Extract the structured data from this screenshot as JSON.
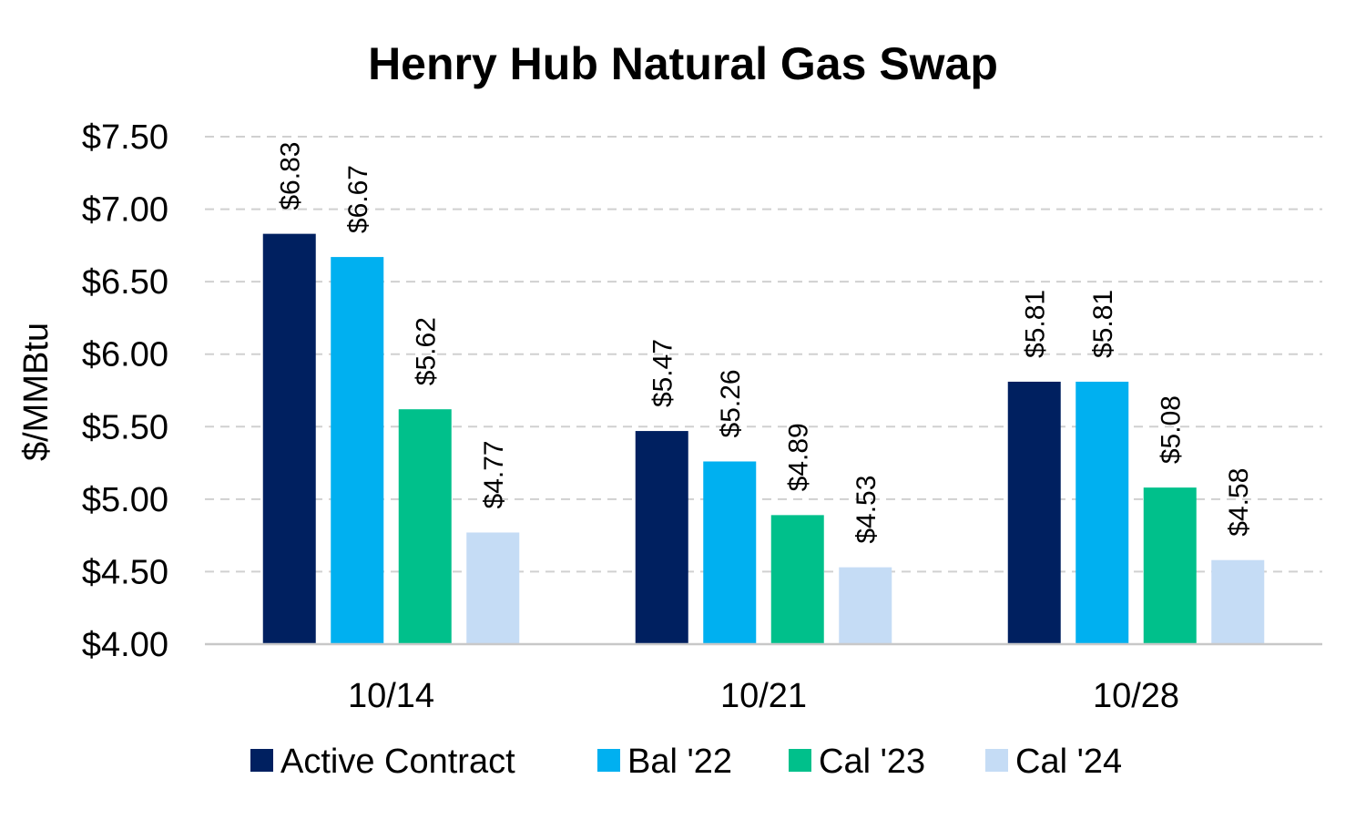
{
  "chart_data": {
    "type": "bar",
    "title": "Henry Hub Natural Gas Swap",
    "xlabel": "",
    "ylabel": "$/MMBtu",
    "ylim": [
      4.0,
      7.5
    ],
    "yticks": [
      4.0,
      4.5,
      5.0,
      5.5,
      6.0,
      6.5,
      7.0,
      7.5
    ],
    "ytick_labels": [
      "$4.00",
      "$4.50",
      "$5.00",
      "$5.50",
      "$6.00",
      "$6.50",
      "$7.00",
      "$7.50"
    ],
    "categories": [
      "10/14",
      "10/21",
      "10/28"
    ],
    "series": [
      {
        "name": "Active Contract",
        "color": "#002060",
        "values": [
          6.83,
          5.47,
          5.81
        ],
        "labels": [
          "$6.83",
          "$5.47",
          "$5.81"
        ]
      },
      {
        "name": "Bal '22",
        "color": "#00B0F0",
        "values": [
          6.67,
          5.26,
          5.81
        ],
        "labels": [
          "$6.67",
          "$5.26",
          "$5.81"
        ]
      },
      {
        "name": "Cal '23",
        "color": "#00C08B",
        "values": [
          5.62,
          4.89,
          5.08
        ],
        "labels": [
          "$5.62",
          "$4.89",
          "$5.08"
        ]
      },
      {
        "name": "Cal '24",
        "color": "#C5DCF5",
        "values": [
          4.77,
          4.53,
          4.58
        ],
        "labels": [
          "$4.77",
          "$4.53",
          "$4.58"
        ]
      }
    ],
    "grid": true,
    "legend_position": "bottom"
  }
}
